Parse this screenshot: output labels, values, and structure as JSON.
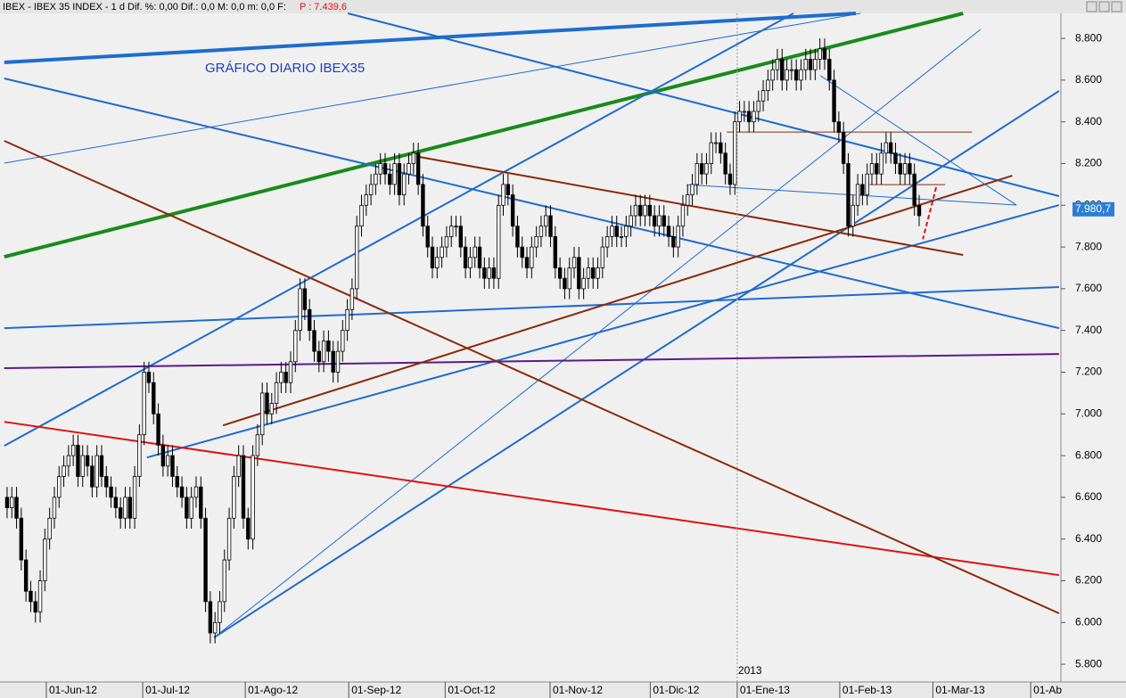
{
  "header": {
    "text": "IBEX - IBEX 35 INDEX - 1 d  Dif. %: 0,00  Dif.: 0,0  M: 0,0  m: 0,0  F:",
    "price": "P : 7.439,6"
  },
  "chart_data": {
    "type": "candlestick",
    "title": "GRÁFICO DIARIO IBEX35",
    "year_label": "2013",
    "xlim": [
      -1.5,
      223.0
    ],
    "ylim": [
      5715,
      8920
    ],
    "xticks": [
      {
        "value": 8.3,
        "label": "01-Jun-12"
      },
      {
        "value": 28.7,
        "label": "01-Jul-12"
      },
      {
        "value": 50.4,
        "label": "01-Ago-12"
      },
      {
        "value": 72.3,
        "label": "01-Sep-12"
      },
      {
        "value": 92.7,
        "label": "01-Oct-12"
      },
      {
        "value": 114.9,
        "label": "01-Nov-12"
      },
      {
        "value": 136.1,
        "label": "01-Dic-12"
      },
      {
        "value": 154.5,
        "label": "01-Ene-13"
      },
      {
        "value": 176.2,
        "label": "01-Feb-13"
      },
      {
        "value": 195.9,
        "label": "01-Mar-13"
      },
      {
        "value": 216.6,
        "label": "01-Ab"
      }
    ],
    "yticks": [
      {
        "value": 5800,
        "label": "5.800"
      },
      {
        "value": 6000,
        "label": "6.000"
      },
      {
        "value": 6200,
        "label": "6.200"
      },
      {
        "value": 6400,
        "label": "6.400"
      },
      {
        "value": 6600,
        "label": "6.600"
      },
      {
        "value": 6800,
        "label": "6.800"
      },
      {
        "value": 7000,
        "label": "7.000"
      },
      {
        "value": 7200,
        "label": "7.200"
      },
      {
        "value": 7400,
        "label": "7.400"
      },
      {
        "value": 7600,
        "label": "7.600"
      },
      {
        "value": 7800,
        "label": "7.800"
      },
      {
        "value": 8000,
        "label": "8.000"
      },
      {
        "value": 8200,
        "label": "8.200"
      },
      {
        "value": 8400,
        "label": "8.400"
      },
      {
        "value": 8600,
        "label": "8.600"
      },
      {
        "value": 8800,
        "label": "8.800"
      }
    ],
    "year_x": 154.5,
    "last_price": {
      "value": 7980.7,
      "label": "7.980,7"
    },
    "up_color": "#ffffff",
    "down_color": "#000000",
    "candles": [
      [
        6600,
        6650,
        6500,
        6550
      ],
      [
        6550,
        6650,
        6500,
        6600
      ],
      [
        6600,
        6650,
        6450,
        6500
      ],
      [
        6500,
        6550,
        6250,
        6300
      ],
      [
        6300,
        6350,
        6100,
        6150
      ],
      [
        6150,
        6200,
        6050,
        6100
      ],
      [
        6100,
        6150,
        6000,
        6050
      ],
      [
        6050,
        6250,
        6000,
        6200
      ],
      [
        6200,
        6450,
        6150,
        6400
      ],
      [
        6400,
        6550,
        6350,
        6500
      ],
      [
        6500,
        6650,
        6450,
        6600
      ],
      [
        6600,
        6750,
        6550,
        6700
      ],
      [
        6700,
        6800,
        6650,
        6750
      ],
      [
        6750,
        6850,
        6700,
        6800
      ],
      [
        6800,
        6900,
        6750,
        6850
      ],
      [
        6850,
        6900,
        6650,
        6700
      ],
      [
        6700,
        6850,
        6650,
        6800
      ],
      [
        6800,
        6850,
        6700,
        6750
      ],
      [
        6750,
        6800,
        6600,
        6650
      ],
      [
        6650,
        6850,
        6600,
        6800
      ],
      [
        6800,
        6850,
        6650,
        6700
      ],
      [
        6700,
        6750,
        6600,
        6650
      ],
      [
        6650,
        6700,
        6550,
        6600
      ],
      [
        6600,
        6650,
        6500,
        6550
      ],
      [
        6550,
        6600,
        6450,
        6500
      ],
      [
        6500,
        6650,
        6450,
        6600
      ],
      [
        6600,
        6650,
        6450,
        6500
      ],
      [
        6500,
        6750,
        6450,
        6700
      ],
      [
        6700,
        6950,
        6650,
        6900
      ],
      [
        6900,
        7250,
        6850,
        7200
      ],
      [
        7200,
        7250,
        7100,
        7150
      ],
      [
        7150,
        7200,
        6950,
        7000
      ],
      [
        7000,
        7050,
        6800,
        6850
      ],
      [
        6850,
        6900,
        6700,
        6750
      ],
      [
        6750,
        6850,
        6700,
        6800
      ],
      [
        6800,
        6850,
        6650,
        6700
      ],
      [
        6700,
        6750,
        6600,
        6650
      ],
      [
        6650,
        6700,
        6550,
        6600
      ],
      [
        6600,
        6650,
        6450,
        6500
      ],
      [
        6500,
        6650,
        6450,
        6600
      ],
      [
        6600,
        6700,
        6550,
        6650
      ],
      [
        6650,
        6700,
        6450,
        6500
      ],
      [
        6500,
        6550,
        6050,
        6100
      ],
      [
        6100,
        6150,
        5900,
        5950
      ],
      [
        5950,
        6050,
        5900,
        6000
      ],
      [
        6000,
        6150,
        5950,
        6100
      ],
      [
        6100,
        6350,
        6050,
        6300
      ],
      [
        6300,
        6550,
        6250,
        6500
      ],
      [
        6500,
        6750,
        6450,
        6700
      ],
      [
        6700,
        6850,
        6650,
        6800
      ],
      [
        6800,
        6850,
        6450,
        6500
      ],
      [
        6500,
        6550,
        6350,
        6400
      ],
      [
        6400,
        6850,
        6350,
        6800
      ],
      [
        6800,
        6950,
        6750,
        6900
      ],
      [
        6900,
        7150,
        6850,
        7100
      ],
      [
        7100,
        7150,
        6950,
        7000
      ],
      [
        7000,
        7100,
        6950,
        7050
      ],
      [
        7050,
        7200,
        7000,
        7150
      ],
      [
        7150,
        7250,
        7100,
        7200
      ],
      [
        7200,
        7250,
        7100,
        7150
      ],
      [
        7150,
        7300,
        7100,
        7250
      ],
      [
        7250,
        7450,
        7200,
        7400
      ],
      [
        7400,
        7650,
        7350,
        7600
      ],
      [
        7600,
        7650,
        7450,
        7500
      ],
      [
        7500,
        7550,
        7350,
        7400
      ],
      [
        7400,
        7450,
        7250,
        7300
      ],
      [
        7300,
        7350,
        7200,
        7250
      ],
      [
        7250,
        7400,
        7200,
        7350
      ],
      [
        7350,
        7400,
        7250,
        7300
      ],
      [
        7300,
        7350,
        7150,
        7200
      ],
      [
        7200,
        7350,
        7150,
        7300
      ],
      [
        7300,
        7450,
        7250,
        7400
      ],
      [
        7400,
        7550,
        7350,
        7500
      ],
      [
        7500,
        7650,
        7450,
        7600
      ],
      [
        7600,
        7950,
        7550,
        7900
      ],
      [
        7900,
        8050,
        7850,
        8000
      ],
      [
        8000,
        8100,
        7950,
        8050
      ],
      [
        8050,
        8150,
        8000,
        8100
      ],
      [
        8100,
        8200,
        8050,
        8150
      ],
      [
        8150,
        8250,
        8100,
        8200
      ],
      [
        8200,
        8250,
        8100,
        8150
      ],
      [
        8150,
        8200,
        8050,
        8100
      ],
      [
        8100,
        8250,
        8050,
        8200
      ],
      [
        8200,
        8250,
        8000,
        8050
      ],
      [
        8050,
        8200,
        8000,
        8150
      ],
      [
        8150,
        8250,
        8100,
        8200
      ],
      [
        8200,
        8300,
        8150,
        8250
      ],
      [
        8250,
        8300,
        8050,
        8100
      ],
      [
        8100,
        8150,
        7850,
        7900
      ],
      [
        7900,
        7950,
        7750,
        7800
      ],
      [
        7800,
        7850,
        7650,
        7700
      ],
      [
        7700,
        7800,
        7650,
        7750
      ],
      [
        7750,
        7850,
        7700,
        7800
      ],
      [
        7800,
        7900,
        7750,
        7850
      ],
      [
        7850,
        7950,
        7800,
        7900
      ],
      [
        7900,
        7950,
        7850,
        7900
      ],
      [
        7900,
        7950,
        7750,
        7800
      ],
      [
        7800,
        7850,
        7650,
        7700
      ],
      [
        7700,
        7800,
        7650,
        7750
      ],
      [
        7750,
        7850,
        7700,
        7800
      ],
      [
        7800,
        7850,
        7650,
        7700
      ],
      [
        7700,
        7750,
        7600,
        7650
      ],
      [
        7650,
        7750,
        7600,
        7700
      ],
      [
        7700,
        7750,
        7600,
        7650
      ],
      [
        7650,
        8050,
        7600,
        8000
      ],
      [
        8000,
        8150,
        7950,
        8100
      ],
      [
        8100,
        8150,
        8000,
        8050
      ],
      [
        8050,
        8100,
        7850,
        7900
      ],
      [
        7900,
        7950,
        7750,
        7800
      ],
      [
        7800,
        7850,
        7700,
        7750
      ],
      [
        7750,
        7800,
        7650,
        7700
      ],
      [
        7700,
        7850,
        7650,
        7800
      ],
      [
        7800,
        7900,
        7750,
        7850
      ],
      [
        7850,
        7950,
        7800,
        7900
      ],
      [
        7900,
        8000,
        7850,
        7950
      ],
      [
        7950,
        8000,
        7800,
        7850
      ],
      [
        7850,
        7900,
        7650,
        7700
      ],
      [
        7700,
        7750,
        7600,
        7650
      ],
      [
        7650,
        7700,
        7550,
        7600
      ],
      [
        7600,
        7750,
        7550,
        7700
      ],
      [
        7700,
        7800,
        7650,
        7750
      ],
      [
        7750,
        7800,
        7550,
        7600
      ],
      [
        7600,
        7700,
        7550,
        7650
      ],
      [
        7650,
        7750,
        7600,
        7700
      ],
      [
        7700,
        7750,
        7600,
        7650
      ],
      [
        7650,
        7750,
        7600,
        7700
      ],
      [
        7700,
        7850,
        7650,
        7800
      ],
      [
        7800,
        7900,
        7750,
        7850
      ],
      [
        7850,
        7950,
        7800,
        7900
      ],
      [
        7900,
        7950,
        7800,
        7850
      ],
      [
        7850,
        7900,
        7800,
        7850
      ],
      [
        7850,
        7950,
        7800,
        7900
      ],
      [
        7900,
        8000,
        7850,
        7950
      ],
      [
        7950,
        8050,
        7900,
        8000
      ],
      [
        8000,
        8050,
        7900,
        7950
      ],
      [
        7950,
        8050,
        7900,
        8000
      ],
      [
        8000,
        8050,
        7900,
        7950
      ],
      [
        7950,
        8000,
        7850,
        7900
      ],
      [
        7900,
        8000,
        7850,
        7950
      ],
      [
        7950,
        8000,
        7850,
        7900
      ],
      [
        7900,
        7950,
        7800,
        7850
      ],
      [
        7850,
        7900,
        7750,
        7800
      ],
      [
        7800,
        7950,
        7750,
        7900
      ],
      [
        7900,
        8050,
        7850,
        8000
      ],
      [
        8000,
        8100,
        7950,
        8050
      ],
      [
        8050,
        8150,
        8000,
        8100
      ],
      [
        8100,
        8250,
        8050,
        8200
      ],
      [
        8200,
        8250,
        8100,
        8150
      ],
      [
        8150,
        8250,
        8100,
        8200
      ],
      [
        8200,
        8350,
        8150,
        8300
      ],
      [
        8300,
        8350,
        8250,
        8300
      ],
      [
        8300,
        8350,
        8200,
        8250
      ],
      [
        8250,
        8300,
        8100,
        8150
      ],
      [
        8150,
        8200,
        8050,
        8100
      ],
      [
        8100,
        8450,
        8050,
        8400
      ],
      [
        8400,
        8500,
        8350,
        8450
      ],
      [
        8450,
        8500,
        8400,
        8450
      ],
      [
        8450,
        8500,
        8350,
        8400
      ],
      [
        8400,
        8500,
        8350,
        8450
      ],
      [
        8450,
        8550,
        8400,
        8500
      ],
      [
        8500,
        8600,
        8450,
        8550
      ],
      [
        8550,
        8650,
        8500,
        8600
      ],
      [
        8600,
        8700,
        8550,
        8650
      ],
      [
        8650,
        8750,
        8600,
        8700
      ],
      [
        8700,
        8750,
        8550,
        8600
      ],
      [
        8600,
        8700,
        8550,
        8650
      ],
      [
        8650,
        8700,
        8600,
        8650
      ],
      [
        8650,
        8700,
        8550,
        8600
      ],
      [
        8600,
        8700,
        8550,
        8650
      ],
      [
        8650,
        8750,
        8600,
        8700
      ],
      [
        8700,
        8750,
        8600,
        8650
      ],
      [
        8650,
        8750,
        8600,
        8700
      ],
      [
        8700,
        8800,
        8650,
        8750
      ],
      [
        8750,
        8800,
        8650,
        8700
      ],
      [
        8700,
        8750,
        8550,
        8600
      ],
      [
        8600,
        8650,
        8350,
        8400
      ],
      [
        8400,
        8450,
        8300,
        8350
      ],
      [
        8350,
        8400,
        8150,
        8200
      ],
      [
        8200,
        8250,
        7850,
        7900
      ],
      [
        7900,
        8050,
        7850,
        8000
      ],
      [
        8000,
        8150,
        7950,
        8100
      ],
      [
        8100,
        8150,
        8000,
        8050
      ],
      [
        8050,
        8200,
        8000,
        8150
      ],
      [
        8150,
        8250,
        8100,
        8200
      ],
      [
        8200,
        8250,
        8100,
        8150
      ],
      [
        8150,
        8300,
        8100,
        8250
      ],
      [
        8250,
        8350,
        8200,
        8300
      ],
      [
        8300,
        8350,
        8200,
        8250
      ],
      [
        8250,
        8300,
        8150,
        8200
      ],
      [
        8200,
        8250,
        8100,
        8150
      ],
      [
        8150,
        8250,
        8100,
        8200
      ],
      [
        8200,
        8250,
        8100,
        8150
      ],
      [
        8150,
        8200,
        7950,
        8000
      ],
      [
        8000,
        8050,
        7900,
        7950
      ]
    ],
    "trendlines": [
      {
        "color": "#1e6ccf",
        "width": 4,
        "x": [
          -0.6,
          179.6
        ],
        "y": [
          8685,
          8920
        ]
      },
      {
        "color": "#1e6ccf",
        "width": 1,
        "x": [
          -0.6,
          180.6
        ],
        "y": [
          8202,
          8920
        ]
      },
      {
        "color": "#1a8a1a",
        "width": 4,
        "x": [
          -0.6,
          202.3
        ],
        "y": [
          7753,
          8920
        ]
      },
      {
        "color": "#1e6ccf",
        "width": 2,
        "x": [
          -0.6,
          222.6
        ],
        "y": [
          8608,
          7411
        ]
      },
      {
        "color": "#1e6ccf",
        "width": 2,
        "x": [
          72.1,
          222.6
        ],
        "y": [
          8920,
          8044
        ]
      },
      {
        "color": "#1e6ccf",
        "width": 2,
        "x": [
          -0.6,
          166.4
        ],
        "y": [
          6847,
          8920
        ]
      },
      {
        "color": "#1e6ccf",
        "width": 2,
        "x": [
          43.8,
          222.6
        ],
        "y": [
          5928,
          8548
        ]
      },
      {
        "color": "#1e6ccf",
        "width": 1,
        "x": [
          43.8,
          206.0
        ],
        "y": [
          5928,
          8843
        ]
      },
      {
        "color": "#1e6ccf",
        "width": 2,
        "x": [
          29.6,
          222.6
        ],
        "y": [
          6791,
          8001
        ]
      },
      {
        "color": "#1e6ccf",
        "width": 2,
        "x": [
          -0.6,
          222.6
        ],
        "y": [
          7411,
          7608
        ]
      },
      {
        "color": "#5a1a8a",
        "width": 2,
        "x": [
          -0.6,
          222.6
        ],
        "y": [
          7219,
          7287
        ]
      },
      {
        "color": "#e01010",
        "width": 2,
        "x": [
          -0.6,
          222.6
        ],
        "y": [
          6962,
          6227
        ]
      },
      {
        "color": "#8b2a0a",
        "width": 2,
        "x": [
          -0.6,
          222.6
        ],
        "y": [
          8309,
          6044
        ]
      },
      {
        "color": "#8b2a0a",
        "width": 2,
        "x": [
          87.2,
          202.3
        ],
        "y": [
          8232,
          7762
        ]
      },
      {
        "color": "#8b2a0a",
        "width": 2,
        "x": [
          45.7,
          212.7
        ],
        "y": [
          6945,
          8142
        ]
      },
      {
        "color": "#1e6ccf",
        "width": 1,
        "x": [
          143.8,
          213.6
        ],
        "y": [
          8099,
          8001
        ]
      },
      {
        "color": "#1e6ccf",
        "width": 1,
        "x": [
          172.1,
          213.6
        ],
        "y": [
          8621,
          8001
        ]
      },
      {
        "color": "#8b2a0a",
        "width": 1,
        "x": [
          152.3,
          204.2
        ],
        "y": [
          8351,
          8351
        ]
      },
      {
        "color": "#8b2a0a",
        "width": 1,
        "x": [
          182.5,
          198.5
        ],
        "y": [
          8099,
          8099
        ]
      },
      {
        "color": "#e01010",
        "width": 2,
        "dash": true,
        "x": [
          196.6,
          193.8
        ],
        "y": [
          8086,
          7838
        ]
      }
    ]
  }
}
